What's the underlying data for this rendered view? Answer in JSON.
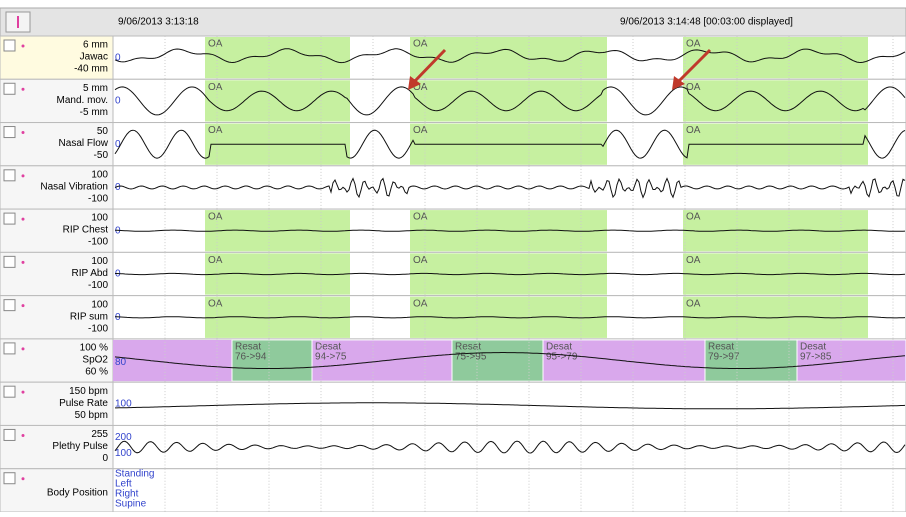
{
  "header": {
    "start_time": "9/06/2013 3:13:18",
    "mid_time": "9/06/2013 3:14:48 [00:03:00 displayed]"
  },
  "event_label": "OA",
  "channels": [
    {
      "top": "6 mm",
      "name": "Jawac",
      "bottom": "-40 mm",
      "inner": [
        "0"
      ]
    },
    {
      "top": "5 mm",
      "name": "Mand. mov.",
      "bottom": "-5 mm",
      "inner": [
        "0"
      ]
    },
    {
      "top": "50",
      "name": "Nasal Flow",
      "bottom": "-50",
      "inner": [
        "0"
      ]
    },
    {
      "top": "100",
      "name": "Nasal Vibration",
      "bottom": "-100",
      "inner": [
        "0"
      ]
    },
    {
      "top": "100",
      "name": "RIP Chest",
      "bottom": "-100",
      "inner": [
        "0"
      ]
    },
    {
      "top": "100",
      "name": "RIP Abd",
      "bottom": "-100",
      "inner": [
        "0"
      ]
    },
    {
      "top": "100",
      "name": "RIP sum",
      "bottom": "-100",
      "inner": [
        "0"
      ]
    },
    {
      "top": "100 %",
      "name": "SpO2",
      "bottom": "60 %",
      "inner": [
        "80"
      ]
    },
    {
      "top": "150 bpm",
      "name": "Pulse Rate",
      "bottom": "50 bpm",
      "inner": [
        "100"
      ]
    },
    {
      "top": "255",
      "name": "Plethy Pulse",
      "bottom": "0",
      "inner": [
        "200",
        "100"
      ]
    },
    {
      "name": "Body Position",
      "inner": [
        "Standing",
        "Left",
        "Right",
        "Supine"
      ]
    }
  ],
  "spo2_events": [
    {
      "type": "Resat",
      "range": "76->94"
    },
    {
      "type": "Desat",
      "range": "94->75"
    },
    {
      "type": "Resat",
      "range": "75->95"
    },
    {
      "type": "Desat",
      "range": "95->79"
    },
    {
      "type": "Resat",
      "range": "79->97"
    },
    {
      "type": "Desat",
      "range": "97->85"
    }
  ]
}
